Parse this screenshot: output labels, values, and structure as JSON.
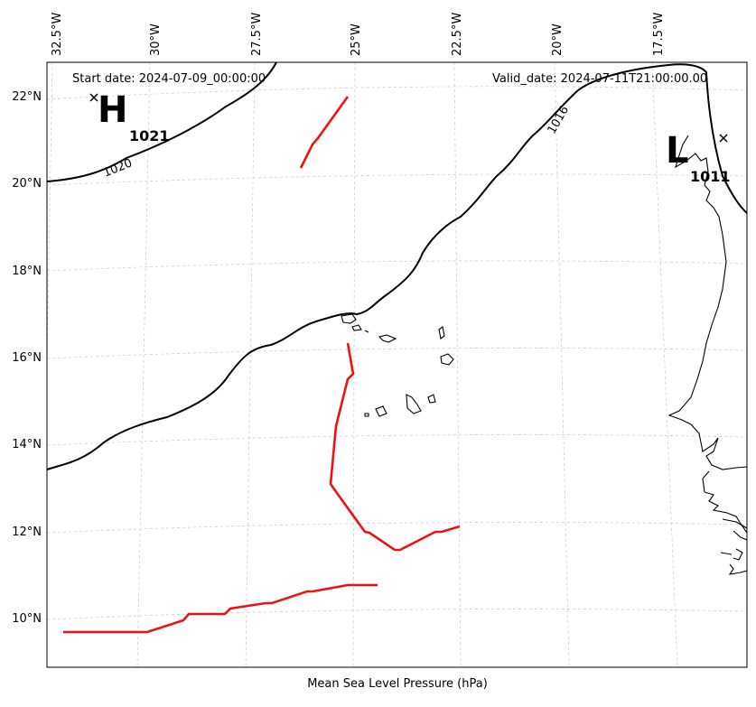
{
  "map": {
    "start_date": "Start date: 2024-07-09_00:00:00",
    "valid_date": "Valid_date: 2024-07-11T21:00:00.00",
    "caption": "Mean Sea Level Pressure (hPa)",
    "lon_ticks": [
      "32.5°W",
      "30°W",
      "27.5°W",
      "25°W",
      "22.5°W",
      "20°W",
      "17.5°W"
    ],
    "lat_ticks": [
      "22°N",
      "20°N",
      "18°N",
      "16°N",
      "14°N",
      "12°N",
      "10°N"
    ],
    "contours": [
      {
        "label": "1020"
      },
      {
        "label": "1016"
      }
    ],
    "high": {
      "letter": "H",
      "value": "1021"
    },
    "low": {
      "letter": "L",
      "value": "1011"
    },
    "colors": {
      "isobar": "#000000",
      "front": "#ee1111",
      "gridline": "#cccccc",
      "coastline": "#000000"
    }
  }
}
